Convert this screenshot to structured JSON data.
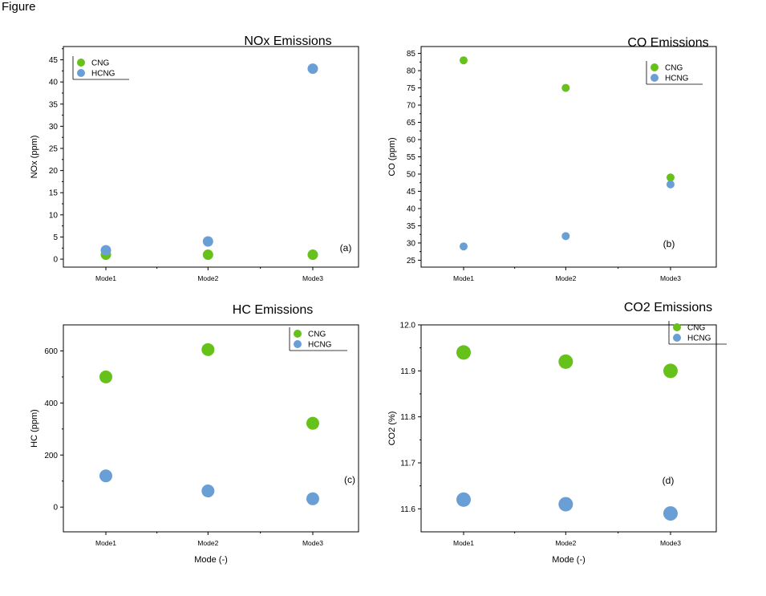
{
  "header_text": "Figure",
  "colors": {
    "CNG": "#66c21a",
    "HCNG": "#6a9fd6"
  },
  "chart_data": [
    {
      "type": "scatter",
      "title": "NOx Emissions",
      "panel_label": "(a)",
      "xlabel": "",
      "ylabel": "NOx (ppm)",
      "categories": [
        "Mode1",
        "Mode2",
        "Mode3"
      ],
      "ylim": [
        -1.8,
        48
      ],
      "yticks": [
        0,
        5,
        10,
        15,
        20,
        25,
        30,
        35,
        40,
        45
      ],
      "legend_position": "top-left",
      "series": [
        {
          "name": "CNG",
          "values": [
            1,
            1,
            1
          ]
        },
        {
          "name": "HCNG",
          "values": [
            2,
            4,
            43
          ]
        }
      ]
    },
    {
      "type": "scatter",
      "title": "CO Emissions",
      "panel_label": "(b)",
      "xlabel": "",
      "ylabel": "CO (ppm)",
      "categories": [
        "Mode1",
        "Mode2",
        "Mode3"
      ],
      "ylim": [
        23,
        87
      ],
      "yticks": [
        25,
        30,
        35,
        40,
        45,
        50,
        55,
        60,
        65,
        70,
        75,
        80,
        85
      ],
      "legend_position": "top-right",
      "series": [
        {
          "name": "CNG",
          "values": [
            83,
            75,
            49
          ]
        },
        {
          "name": "HCNG",
          "values": [
            29,
            32,
            47
          ]
        }
      ]
    },
    {
      "type": "scatter",
      "title": "HC Emissions",
      "panel_label": "(c)",
      "xlabel": "Mode (-)",
      "ylabel": "HC (ppm)",
      "categories": [
        "Mode1",
        "Mode2",
        "Mode3"
      ],
      "ylim": [
        -95,
        700
      ],
      "yticks": [
        0,
        200,
        400,
        600
      ],
      "legend_position": "top-right",
      "series": [
        {
          "name": "CNG",
          "values": [
            500,
            605,
            322
          ]
        },
        {
          "name": "HCNG",
          "values": [
            120,
            62,
            32
          ]
        }
      ]
    },
    {
      "type": "scatter",
      "title": "CO2 Emissions",
      "panel_label": "(d)",
      "xlabel": "Mode (-)",
      "ylabel": "CO2 (%)",
      "categories": [
        "Mode1",
        "Mode2",
        "Mode3"
      ],
      "ylim": [
        11.55,
        12.0
      ],
      "yticks": [
        11.6,
        11.7,
        11.8,
        11.9,
        12.0
      ],
      "ytick_decimals": 1,
      "legend_position": "top-right",
      "series": [
        {
          "name": "CNG",
          "values": [
            11.94,
            11.92,
            11.9
          ]
        },
        {
          "name": "HCNG",
          "values": [
            11.62,
            11.61,
            11.59
          ]
        }
      ]
    }
  ]
}
